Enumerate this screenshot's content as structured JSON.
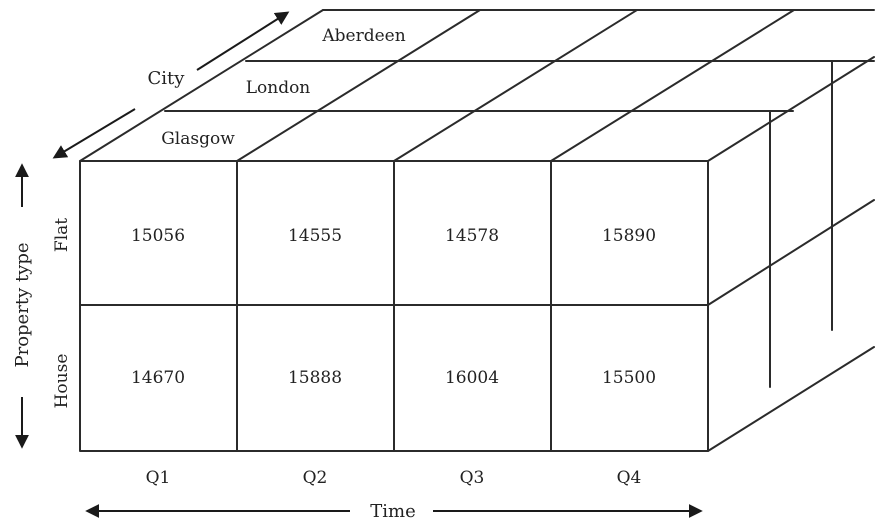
{
  "axes": {
    "city_title": "City",
    "property_type_title": "Property type",
    "time_title": "Time"
  },
  "cities": [
    "Glasgow",
    "London",
    "Aberdeen"
  ],
  "property_types": [
    "Flat",
    "House"
  ],
  "quarters": [
    "Q1",
    "Q2",
    "Q3",
    "Q4"
  ],
  "cells": [
    [
      "15056",
      "14555",
      "14578",
      "15890"
    ],
    [
      "14670",
      "15888",
      "16004",
      "15500"
    ]
  ]
}
